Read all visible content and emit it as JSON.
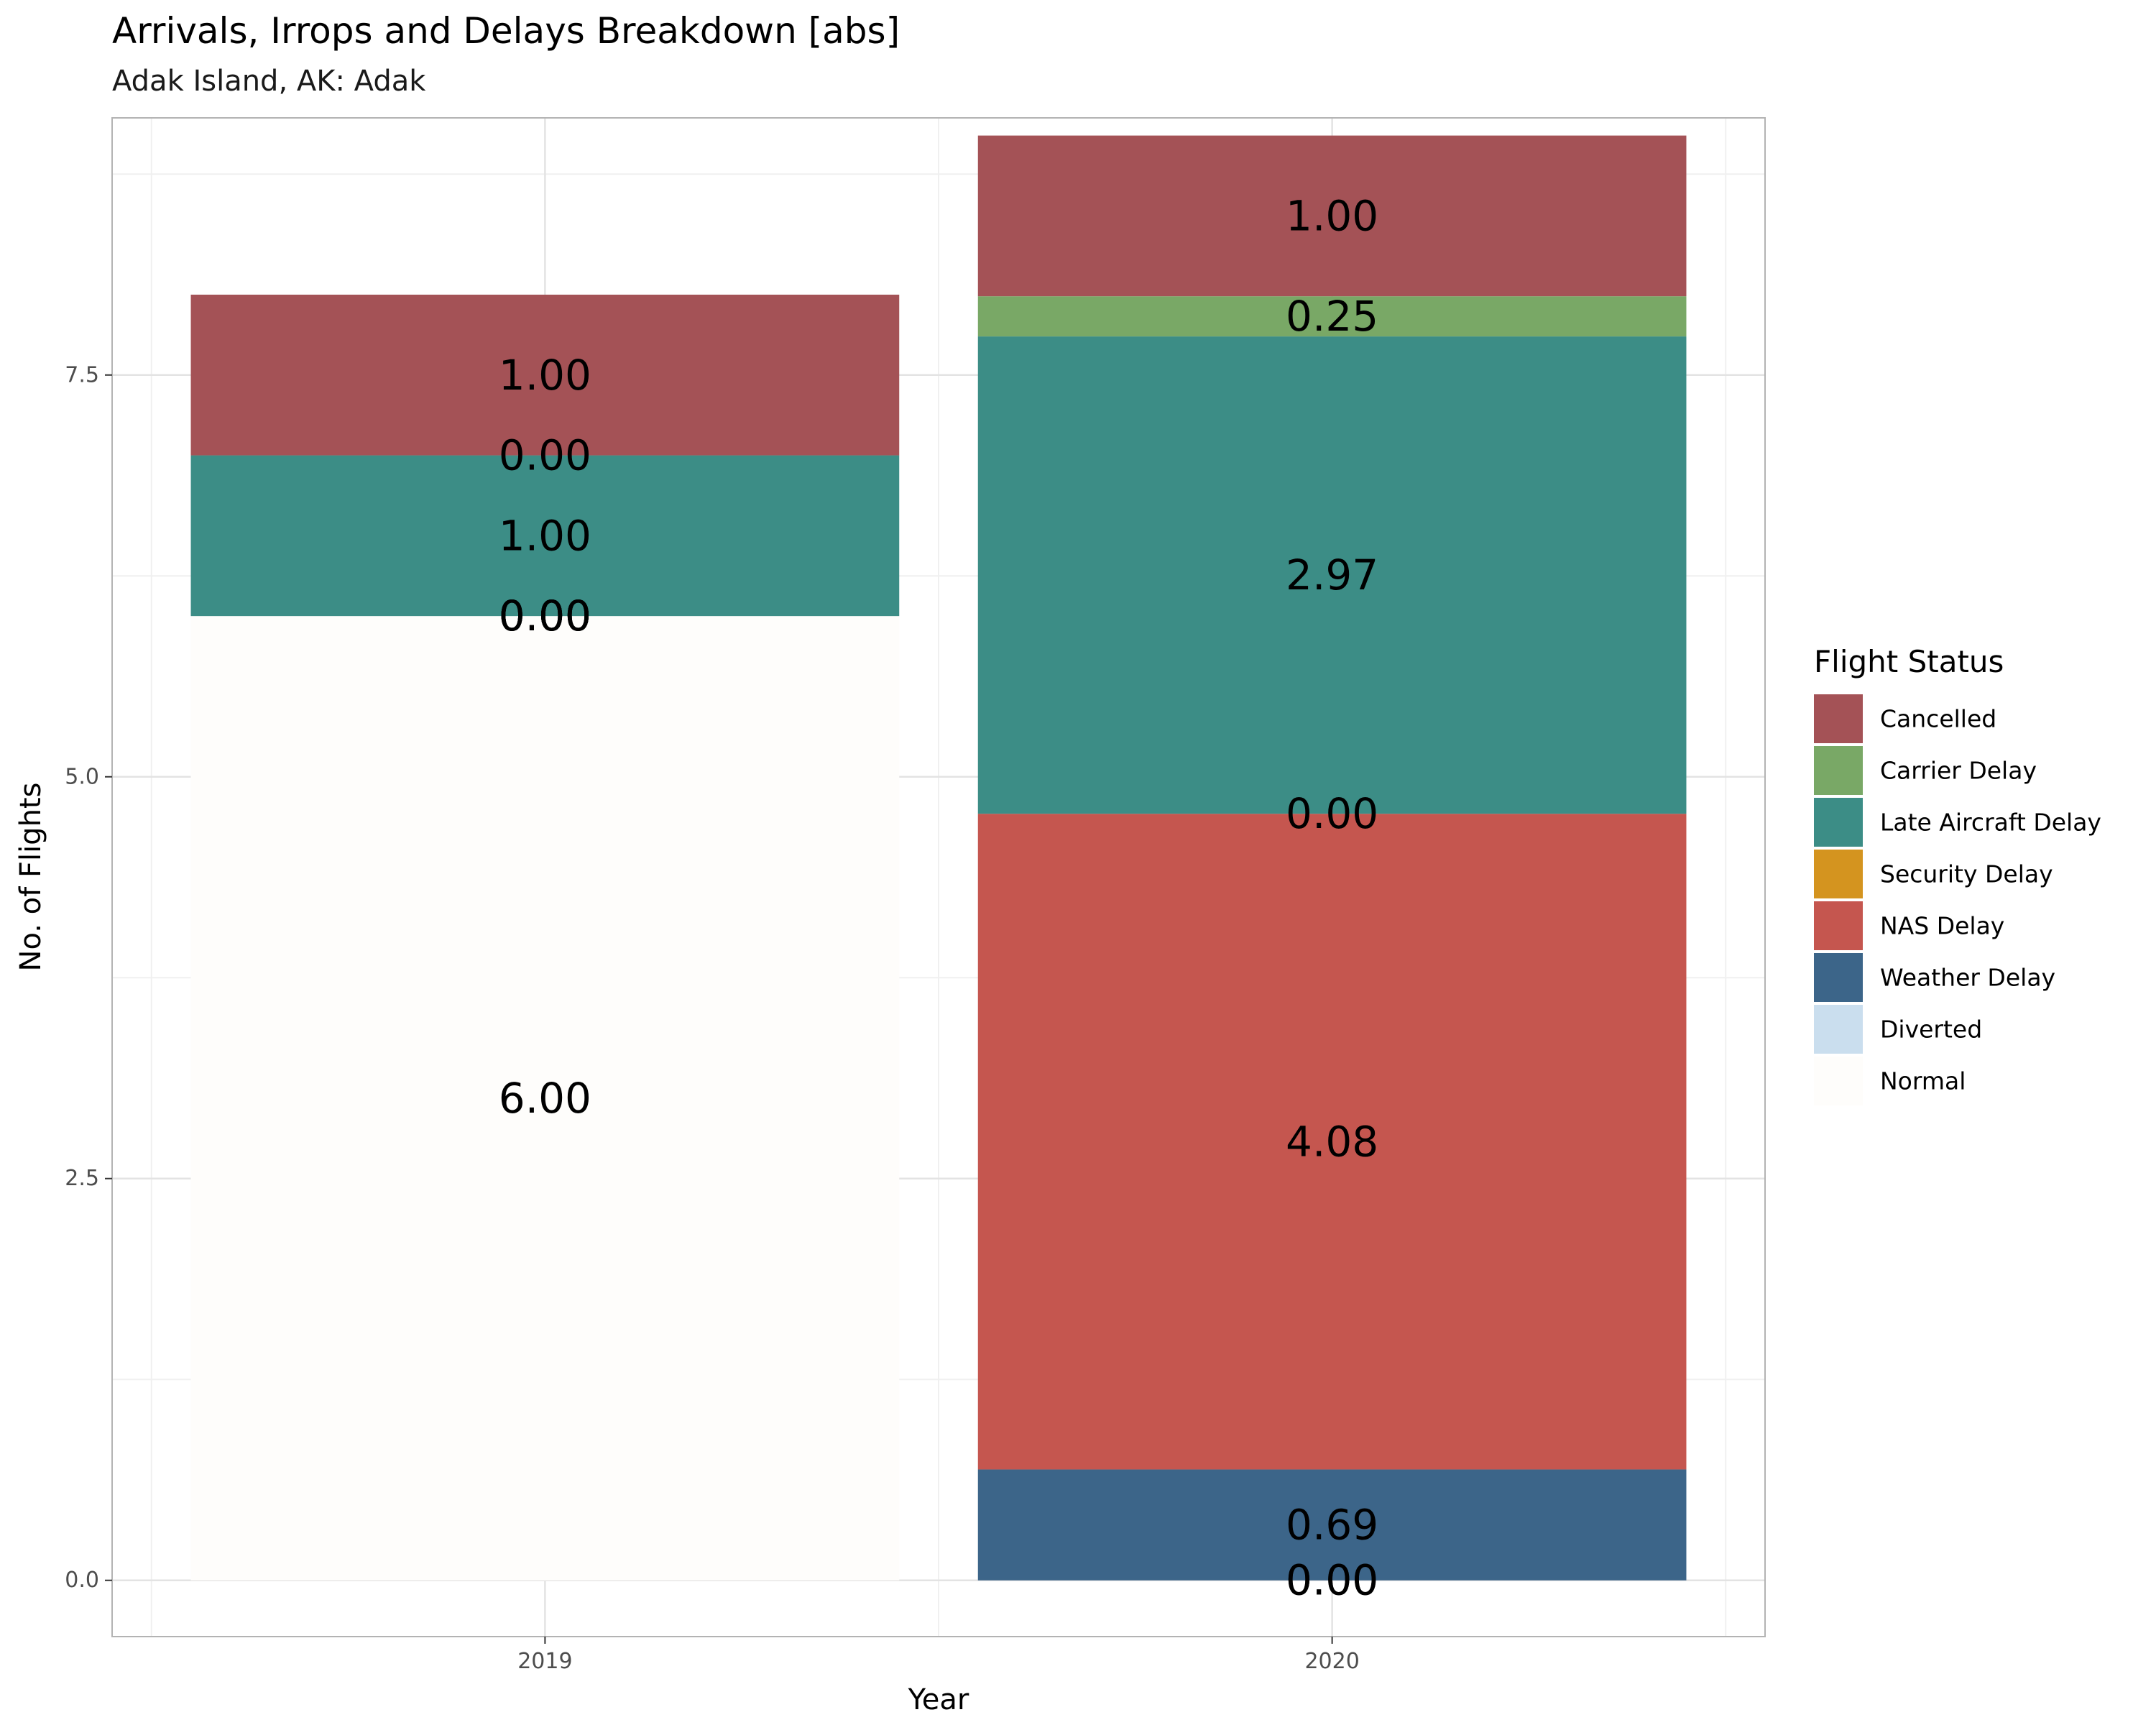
{
  "chart_data": {
    "type": "bar",
    "stacked": true,
    "title": "Arrivals, Irrops and Delays Breakdown [abs]",
    "subtitle": "Adak Island, AK: Adak",
    "xlabel": "Year",
    "ylabel": "No. of Flights",
    "categories": [
      "2019",
      "2020"
    ],
    "ylim": [
      -0.35,
      9.1
    ],
    "yticks": [
      "0.0",
      "2.5",
      "5.0",
      "7.5"
    ],
    "grid": true,
    "legend_title": "Flight Status",
    "legend_position": "right",
    "series": [
      {
        "name": "Normal",
        "color": "#FEFDFB",
        "values": [
          6.0,
          0.0
        ],
        "labels": [
          "6.00",
          "0.00"
        ]
      },
      {
        "name": "Diverted",
        "color": "#CADEEE",
        "values": [
          0.0,
          0.0
        ],
        "labels": [
          "0.00",
          "0.00"
        ]
      },
      {
        "name": "Weather Delay",
        "color": "#3C6589",
        "values": [
          0.0,
          0.69
        ],
        "labels": [
          "0.00",
          "0.69"
        ]
      },
      {
        "name": "NAS Delay",
        "color": "#C5564F",
        "values": [
          0.0,
          4.08
        ],
        "labels": [
          "0.00",
          "4.08"
        ]
      },
      {
        "name": "Security Delay",
        "color": "#D4941F",
        "values": [
          0.0,
          0.0
        ],
        "labels": [
          "0.00",
          "0.00"
        ]
      },
      {
        "name": "Late Aircraft Delay",
        "color": "#3C8D86",
        "values": [
          1.0,
          2.97
        ],
        "labels": [
          "1.00",
          "2.97"
        ]
      },
      {
        "name": "Carrier Delay",
        "color": "#79A866",
        "values": [
          0.0,
          0.25
        ],
        "labels": [
          "0.00",
          "0.25"
        ]
      },
      {
        "name": "Cancelled",
        "color": "#A45256",
        "values": [
          1.0,
          1.0
        ],
        "labels": [
          "1.00",
          "1.00"
        ]
      }
    ]
  }
}
